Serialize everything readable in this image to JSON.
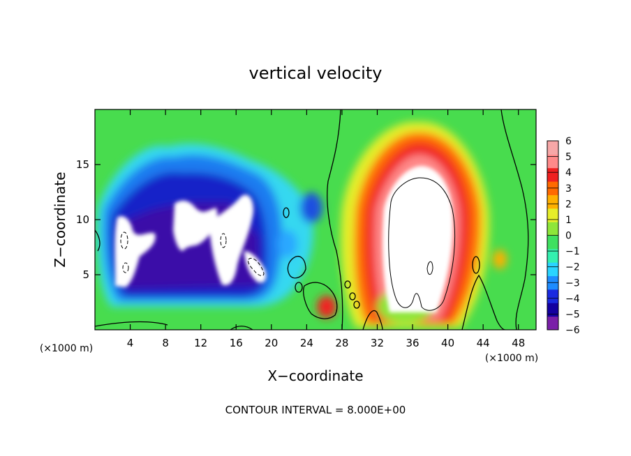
{
  "chart_data": {
    "type": "heatmap",
    "title": "vertical velocity",
    "xlabel": "X−coordinate",
    "ylabel": "Z−coordinate",
    "x_unit_left": "(×1000 m)",
    "x_unit_right": "(×1000 m)",
    "footer": "CONTOUR INTERVAL = 8.000E+00",
    "xlim": [
      0,
      50
    ],
    "ylim": [
      0,
      20
    ],
    "x_ticks": [
      4,
      8,
      12,
      16,
      20,
      24,
      28,
      32,
      36,
      40,
      44,
      48
    ],
    "y_ticks": [
      5,
      10,
      15
    ],
    "colorbar": {
      "ticks": [
        "6",
        "5",
        "4",
        "3",
        "2",
        "1",
        "0",
        "−1",
        "−2",
        "−3",
        "−4",
        "−5",
        "−6"
      ],
      "range": [
        -6,
        6
      ],
      "colors": [
        "#7a1fa8",
        "#1400a0",
        "#1a2ae0",
        "#1e8cff",
        "#2ad4ff",
        "#34f0b0",
        "#3fe060",
        "#8ee63a",
        "#e6ee2a",
        "#ffb000",
        "#ff6a00",
        "#f02020",
        "#ff8a8a",
        "#f7a7a7"
      ]
    },
    "grid": false,
    "legend": "right"
  }
}
